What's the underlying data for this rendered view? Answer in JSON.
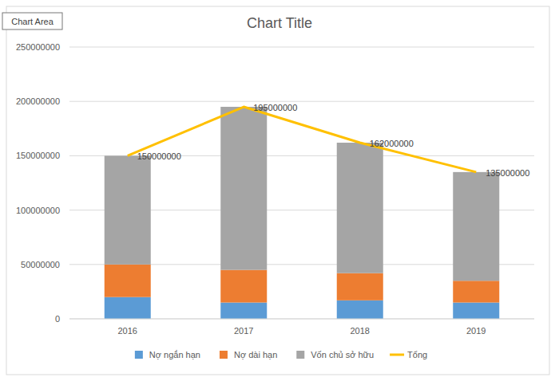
{
  "chart_data": {
    "type": "bar",
    "stacked": true,
    "title": "Chart Title",
    "annotation": "Chart Area",
    "categories": [
      "2016",
      "2017",
      "2018",
      "2019"
    ],
    "series": [
      {
        "name": "Nợ ngắn hạn",
        "color": "#5b9bd5",
        "values": [
          20000000,
          15000000,
          17000000,
          15000000
        ]
      },
      {
        "name": "Nợ dài hạn",
        "color": "#ed7d31",
        "values": [
          30000000,
          30000000,
          25000000,
          20000000
        ]
      },
      {
        "name": "Vốn chủ sở hữu",
        "color": "#a5a5a5",
        "values": [
          100000000,
          150000000,
          120000000,
          100000000
        ]
      },
      {
        "name": "Tổng",
        "type": "line",
        "color": "#ffc000",
        "data_labels": true,
        "values": [
          150000000,
          195000000,
          162000000,
          135000000
        ]
      }
    ],
    "ylim": [
      0,
      250000000
    ],
    "yticks": [
      0,
      50000000,
      100000000,
      150000000,
      200000000,
      250000000
    ],
    "grid": true,
    "legend": "bottom"
  }
}
